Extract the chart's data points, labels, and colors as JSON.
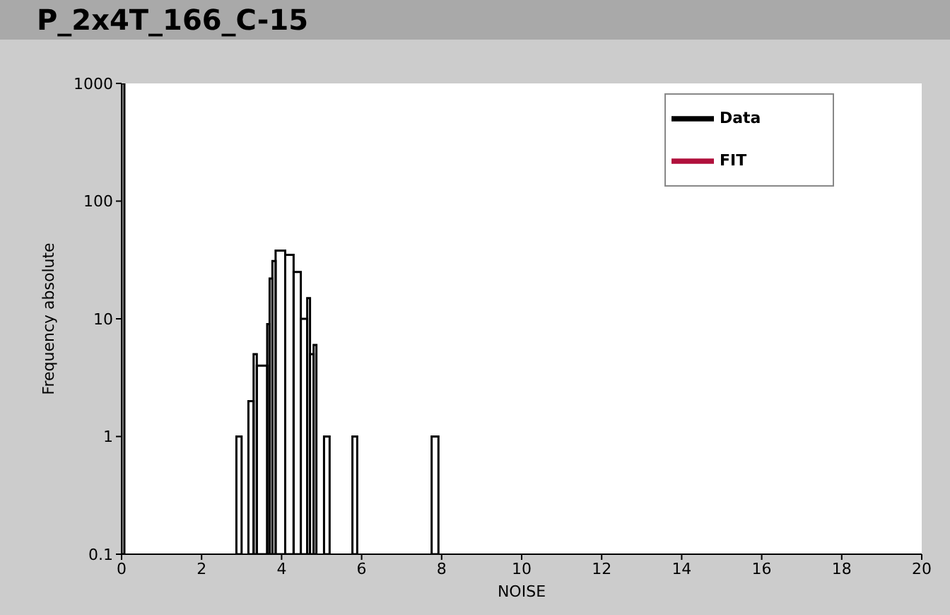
{
  "chart_data": {
    "type": "histogram",
    "title": "P_2x4T_166_C-15",
    "xlabel": "NOISE",
    "ylabel": "Frequency absolute",
    "bins": [
      0,
      0.07,
      2.87,
      3.0,
      3.17,
      3.3,
      3.38,
      3.64,
      3.7,
      3.77,
      3.85,
      4.09,
      4.3,
      4.48,
      4.64,
      4.71,
      4.8,
      4.87,
      5.06,
      5.2,
      5.77,
      5.89,
      7.75,
      7.92
    ],
    "series": [
      {
        "name": "Data",
        "color": "#000000",
        "values": [
          1000,
          null,
          1,
          null,
          2,
          5,
          4,
          9,
          22,
          31,
          38,
          35,
          25,
          10,
          15,
          5,
          6,
          null,
          1,
          null,
          1,
          null,
          1
        ]
      },
      {
        "name": "FIT",
        "type": "line",
        "color": "#b0103c",
        "values": [
          null,
          null,
          null,
          null,
          null,
          null,
          null,
          null,
          null,
          null,
          null,
          null,
          null,
          null,
          null,
          null,
          null,
          null,
          null,
          null,
          null,
          null,
          null
        ]
      }
    ],
    "xlim": [
      0,
      20
    ],
    "xticks": [
      0,
      2,
      4,
      6,
      8,
      10,
      12,
      14,
      16,
      18,
      20
    ],
    "ylim": [
      0.1,
      1000
    ],
    "yticks": [
      0.1,
      1,
      10,
      100,
      1000
    ],
    "log": true,
    "grid": false,
    "legend": "top right"
  }
}
